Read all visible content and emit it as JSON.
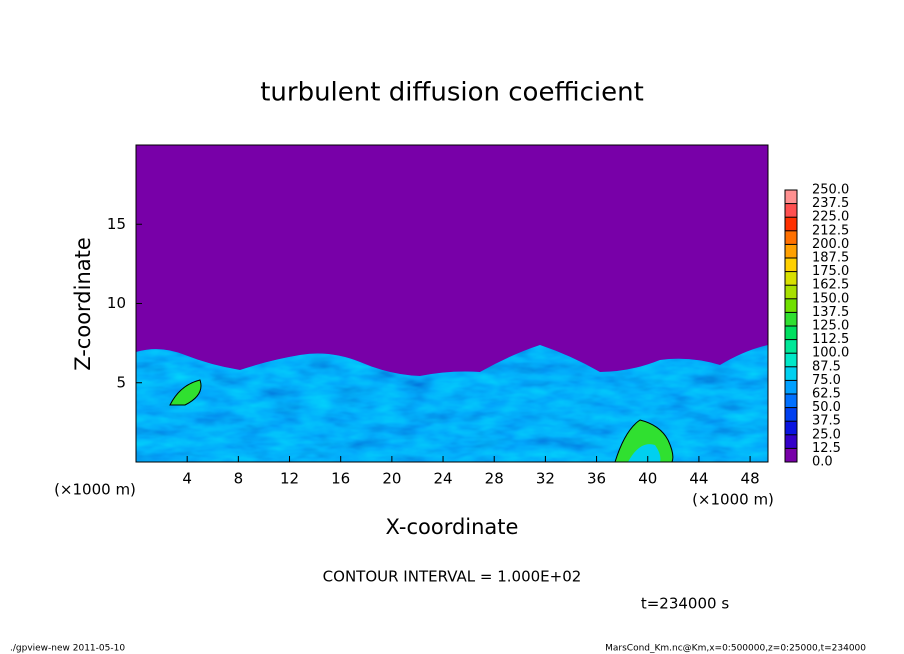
{
  "chart_data": {
    "type": "contour",
    "title": "turbulent diffusion coefficient",
    "xlabel": "X-coordinate",
    "ylabel": "Z-coordinate",
    "xunit": "(×1000 m)",
    "yunit": "(×1000 m)",
    "xlim": [
      0,
      49.4
    ],
    "xticks": [
      4,
      8,
      12,
      16,
      20,
      24,
      28,
      32,
      36,
      40,
      44,
      48
    ],
    "ylim": [
      0,
      20
    ],
    "yticks": [
      5,
      10,
      15
    ],
    "colorbar": {
      "levels": [
        {
          "value": 0,
          "label": "0.0"
        },
        {
          "value": 12.5,
          "label": "12.5"
        },
        {
          "value": 25,
          "label": "25.0"
        },
        {
          "value": 37.5,
          "label": "37.5"
        },
        {
          "value": 50,
          "label": "50.0"
        },
        {
          "value": 62.5,
          "label": "62.5"
        },
        {
          "value": 75,
          "label": "75.0"
        },
        {
          "value": 87.5,
          "label": "87.5"
        },
        {
          "value": 100,
          "label": "100.0"
        },
        {
          "value": 112.5,
          "label": "112.5"
        },
        {
          "value": 125,
          "label": "125.0"
        },
        {
          "value": 137.5,
          "label": "137.5"
        },
        {
          "value": 150,
          "label": "150.0"
        },
        {
          "value": 162.5,
          "label": "162.5"
        },
        {
          "value": 175,
          "label": "175.0"
        },
        {
          "value": 187.5,
          "label": "187.5"
        },
        {
          "value": 200,
          "label": "200.0"
        },
        {
          "value": 212.5,
          "label": "212.5"
        },
        {
          "value": 225,
          "label": "225.0"
        },
        {
          "value": 237.5,
          "label": "237.5"
        },
        {
          "value": 250,
          "label": "250.0"
        }
      ],
      "colors": [
        "#7800a8",
        "#3400c8",
        "#0a14e0",
        "#0040f0",
        "#0070ff",
        "#00a0ff",
        "#00d0f0",
        "#00e8c8",
        "#00e898",
        "#00e060",
        "#30e030",
        "#70e000",
        "#a8e000",
        "#d8e000",
        "#ffd000",
        "#ffa000",
        "#ff7000",
        "#ff3000",
        "#ff5050",
        "#ff9090"
      ]
    },
    "contour_interval": "CONTOUR INTERVAL = 1.000E+02",
    "time_label": "t=234000 s",
    "footer_left": "./gpview-new   2011-05-10",
    "footer_right": "MarsCond_Km.nc@Km,x=0:500000,z=0:25000,t=234000"
  }
}
